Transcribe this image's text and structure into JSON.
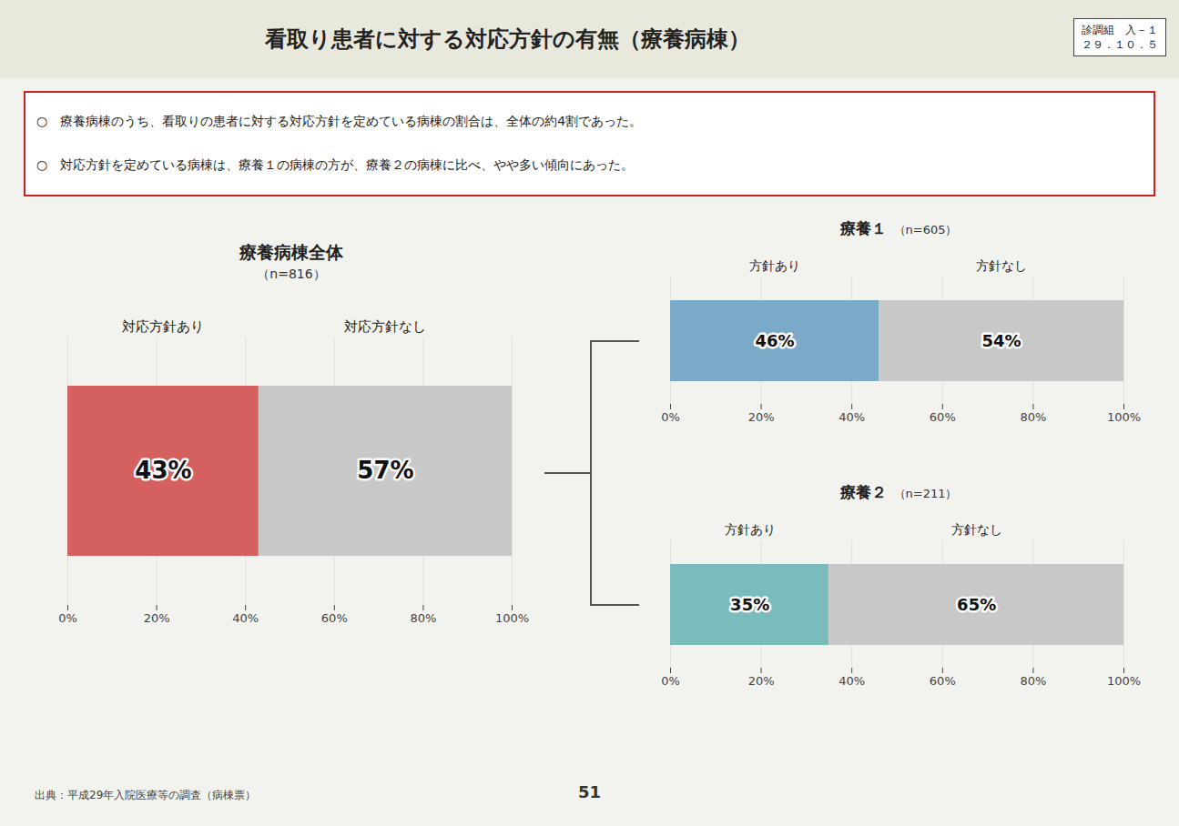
{
  "title": "看取り患者に対する対応方針の有無（療養病棟）",
  "annotations": [
    "診調組　入－１",
    "２９．１０．５",
    "○　療養病棟のうち、看取りの患者に対する対応方針を定めている病棟の割合は、全体の約4割であった。",
    "○　対応方針を定めている病棟は、療養１の病棟の方が、療養２の病棟に比べ、やや多い傾向にあった。",
    "出典：平成29年入院医療等の調査（病棟票）",
    "51"
  ],
  "chart_data": [
    {
      "type": "bar",
      "title": "療養病棟全体",
      "subtitle": "（n=816）",
      "orientation": "horizontal",
      "stacked": true,
      "data_labels": true,
      "grid": true,
      "tick_labels": "x",
      "categories": [
        null
      ],
      "series": [
        {
          "name": "対応方針あり",
          "color": "#D46060",
          "values": [
            43
          ],
          "value_labels": [
            "43%"
          ]
        },
        {
          "name": "対応方針なし",
          "color": "#C8C8C8",
          "values": [
            57
          ],
          "value_labels": [
            "57%"
          ]
        }
      ],
      "xlim": [
        0,
        100
      ],
      "xticks": [
        {
          "value": 0,
          "label": "0%"
        },
        {
          "value": 20,
          "label": "20%"
        },
        {
          "value": 40,
          "label": "40%"
        },
        {
          "value": 60,
          "label": "60%"
        },
        {
          "value": 80,
          "label": "80%"
        },
        {
          "value": 100,
          "label": "100%"
        }
      ]
    },
    {
      "type": "bar",
      "title": "療養１",
      "subtitle": "（n=605）",
      "orientation": "horizontal",
      "stacked": true,
      "data_labels": true,
      "grid": true,
      "tick_labels": "x",
      "categories": [
        null
      ],
      "series": [
        {
          "name": "方針あり",
          "color": "#7BAAC8",
          "values": [
            46
          ],
          "value_labels": [
            "46%"
          ]
        },
        {
          "name": "方針なし",
          "color": "#C8C8C8",
          "values": [
            54
          ],
          "value_labels": [
            "54%"
          ]
        }
      ],
      "xlim": [
        0,
        100
      ],
      "xticks": [
        {
          "value": 0,
          "label": "0%"
        },
        {
          "value": 20,
          "label": "20%"
        },
        {
          "value": 40,
          "label": "40%"
        },
        {
          "value": 60,
          "label": "60%"
        },
        {
          "value": 80,
          "label": "80%"
        },
        {
          "value": 100,
          "label": "100%"
        }
      ]
    },
    {
      "type": "bar",
      "title": "療養２",
      "subtitle": "（n=211）",
      "orientation": "horizontal",
      "stacked": true,
      "data_labels": true,
      "grid": true,
      "tick_labels": "x",
      "categories": [
        null
      ],
      "series": [
        {
          "name": "方針あり",
          "color": "#7ABCBC",
          "values": [
            35
          ],
          "value_labels": [
            "35%"
          ]
        },
        {
          "name": "方針なし",
          "color": "#C8C8C8",
          "values": [
            65
          ],
          "value_labels": [
            "65%"
          ]
        }
      ],
      "xlim": [
        0,
        100
      ],
      "xticks": [
        {
          "value": 0,
          "label": "0%"
        },
        {
          "value": 20,
          "label": "20%"
        },
        {
          "value": 40,
          "label": "40%"
        },
        {
          "value": 60,
          "label": "60%"
        },
        {
          "value": 80,
          "label": "80%"
        },
        {
          "value": 100,
          "label": "100%"
        }
      ]
    }
  ]
}
